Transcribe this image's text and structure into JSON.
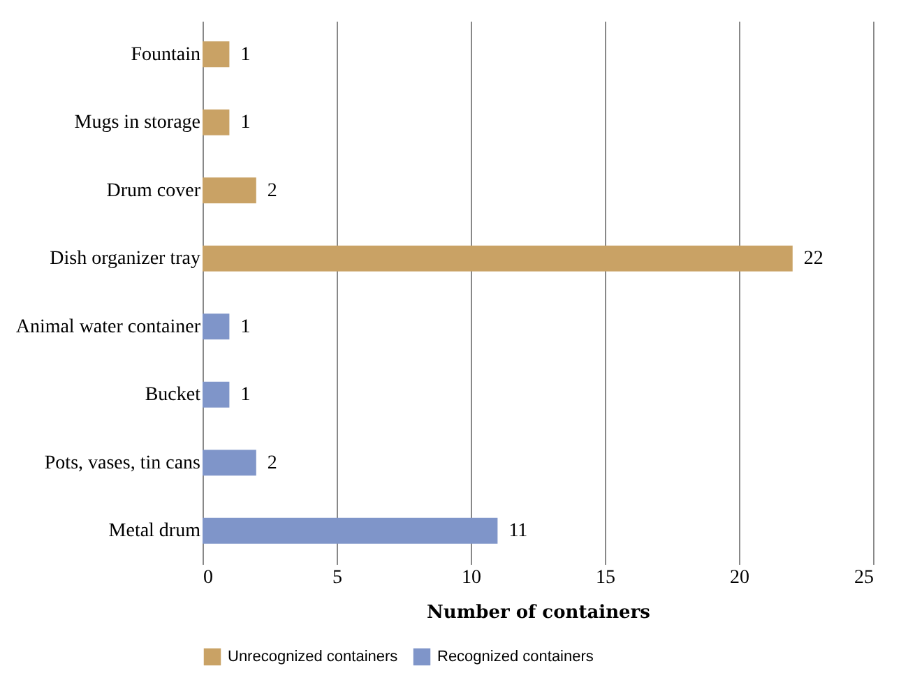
{
  "chart_data": {
    "type": "bar",
    "orientation": "horizontal",
    "xlabel": "Number of containers",
    "categories": [
      "Fountain",
      "Mugs in storage",
      "Drum cover",
      "Dish organizer tray",
      "Animal water container",
      "Bucket",
      "Pots, vases, tin cans",
      "Metal drum"
    ],
    "series": [
      {
        "name": "Unrecognized containers",
        "color": "#c9a265",
        "values": [
          1,
          1,
          2,
          22,
          null,
          null,
          null,
          null
        ]
      },
      {
        "name": "Recognized containers",
        "color": "#7f95c9",
        "values": [
          null,
          null,
          null,
          null,
          1,
          1,
          2,
          11
        ]
      }
    ],
    "xlim": [
      0,
      25
    ],
    "xticks": [
      0,
      5,
      10,
      15,
      20,
      25
    ],
    "grid": "x",
    "legend": "bottom",
    "data_labels": true
  }
}
